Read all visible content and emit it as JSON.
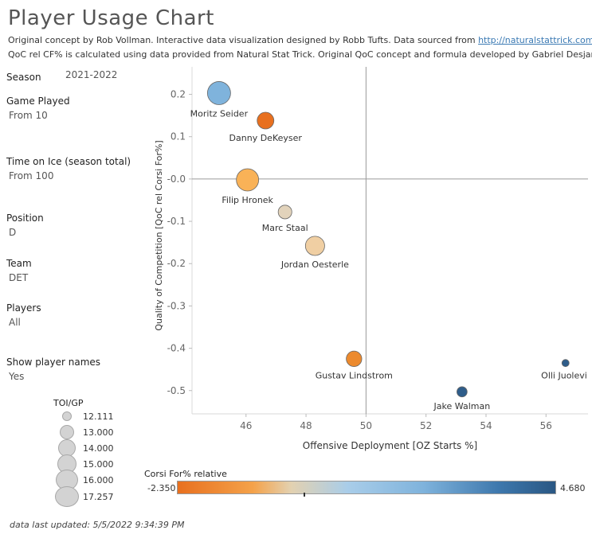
{
  "header": {
    "title": "Player Usage Chart",
    "subtitle_line1_text": "Original concept by Rob Vollman.  Interactive data visualization designed by Robb Tufts.  Data sourced from ",
    "subtitle_link": "http://naturalstattrick.com",
    "subtitle_line2": "QoC rel CF% is calculated using data provided from Natural Stat Trick.  Original QoC concept and formula developed by Gabriel Desjardins."
  },
  "filters": {
    "season_label": "Season",
    "season_value": "2021-2022",
    "games_label": "Game Played",
    "games_value": "From 10",
    "toi_label": "Time on Ice (season total)",
    "toi_value": "From 100",
    "position_label": "Position",
    "position_value": "D",
    "team_label": "Team",
    "team_value": "DET",
    "players_label": "Players",
    "players_value": "All",
    "names_label": "Show player names",
    "names_value": "Yes"
  },
  "size_legend": {
    "title": "TOI/GP",
    "items": [
      "12.111",
      "13.000",
      "14.000",
      "15.000",
      "16.000",
      "17.257"
    ]
  },
  "color_legend": {
    "title": "Corsi For% relative",
    "min": "-2.350",
    "max": "4.680",
    "low_color": "#e8701f",
    "mid_color": "#e3d1b0",
    "high_color": "#2a5783"
  },
  "footer": "data last updated:  5/5/2022 9:34:39 PM",
  "chart_data": {
    "type": "scatter",
    "xlabel": "Offensive Deployment [OZ Starts %]",
    "ylabel": "Quality of Competition [QoC rel Corsi For%]",
    "xlim": [
      44.2,
      57.4
    ],
    "ylim": [
      -0.555,
      0.265
    ],
    "xticks": [
      46,
      48,
      50,
      52,
      54,
      56
    ],
    "yticks": [
      0.2,
      0.1,
      0.0,
      -0.1,
      -0.2,
      -0.3,
      -0.4,
      -0.5
    ],
    "ytick_labels": [
      "0.2",
      "0.1",
      "-0.0",
      "-0.1",
      "-0.2",
      "-0.3",
      "-0.4",
      "-0.5"
    ],
    "reference_lines": {
      "x": 50,
      "y": 0
    },
    "grid": false,
    "points": [
      {
        "name": "Moritz Seider",
        "x": 45.1,
        "y": 0.203,
        "size": 17.26,
        "color": "#7fb3dc"
      },
      {
        "name": "Danny DeKeyser",
        "x": 46.65,
        "y": 0.138,
        "size": 15.2,
        "color": "#e8701f"
      },
      {
        "name": "Filip Hronek",
        "x": 46.05,
        "y": -0.002,
        "size": 17.0,
        "color": "#f9b257"
      },
      {
        "name": "Marc Staal",
        "x": 47.3,
        "y": -0.078,
        "size": 14.2,
        "color": "#e2d3bb"
      },
      {
        "name": "Jordan Oesterle",
        "x": 48.3,
        "y": -0.158,
        "size": 16.0,
        "color": "#f0cfa3"
      },
      {
        "name": "Gustav Lindstrom",
        "x": 49.6,
        "y": -0.425,
        "size": 14.8,
        "color": "#ec8a2e"
      },
      {
        "name": "Jake Walman",
        "x": 53.2,
        "y": -0.503,
        "size": 13.1,
        "color": "#2f5d8a"
      },
      {
        "name": "Olli Juolevi",
        "x": 56.65,
        "y": -0.435,
        "size": 12.11,
        "color": "#2f5d8a"
      }
    ]
  }
}
